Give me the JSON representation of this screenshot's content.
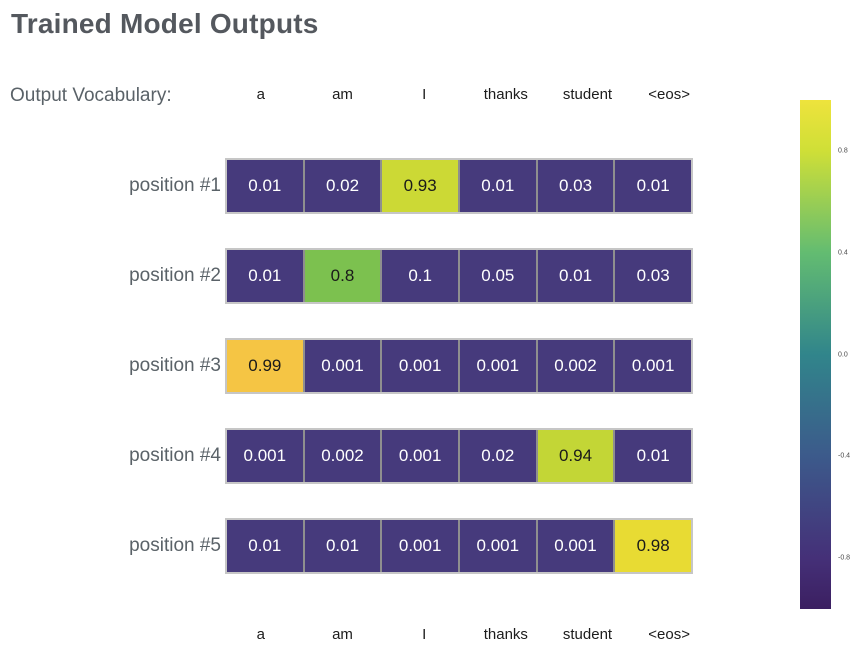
{
  "title": "Trained Model Outputs",
  "vocab_caption": "Output Vocabulary:",
  "chart_data": {
    "type": "heatmap",
    "title": "Trained Model Outputs",
    "columns": [
      "a",
      "am",
      "I",
      "thanks",
      "student",
      "<eos>"
    ],
    "rows": [
      {
        "label": "position #1",
        "values": [
          0.01,
          0.02,
          0.93,
          0.01,
          0.03,
          0.01
        ],
        "highlight": {
          "col": 2,
          "color": "#ccd935"
        }
      },
      {
        "label": "position #2",
        "values": [
          0.01,
          0.8,
          0.1,
          0.05,
          0.01,
          0.03
        ],
        "highlight": {
          "col": 1,
          "color": "#7cc14f"
        }
      },
      {
        "label": "position #3",
        "values": [
          0.99,
          0.001,
          0.001,
          0.001,
          0.002,
          0.001
        ],
        "highlight": {
          "col": 0,
          "color": "#f5c544"
        }
      },
      {
        "label": "position #4",
        "values": [
          0.001,
          0.002,
          0.001,
          0.02,
          0.94,
          0.01
        ],
        "highlight": {
          "col": 4,
          "color": "#c3d636"
        }
      },
      {
        "label": "position #5",
        "values": [
          0.01,
          0.01,
          0.001,
          0.001,
          0.001,
          0.98
        ],
        "highlight": {
          "col": 5,
          "color": "#e8db33"
        }
      }
    ],
    "cell_colors": {
      "base": "#463a7c",
      "text_on_base": "#ffffff",
      "text_on_highlight": "#1a1a1a"
    },
    "colorbar": {
      "range": [
        -1,
        1
      ],
      "ticks": [
        {
          "value": 0.8,
          "label": "0.8"
        },
        {
          "value": 0.4,
          "label": "0.4"
        },
        {
          "value": 0,
          "label": "0.0"
        },
        {
          "value": -0.4,
          "label": "-0.4"
        },
        {
          "value": -0.8,
          "label": "-0.8"
        }
      ],
      "gradient": [
        {
          "pos": 0,
          "color": "#eee33c"
        },
        {
          "pos": 10,
          "color": "#cfdf37"
        },
        {
          "pos": 30,
          "color": "#63bc71"
        },
        {
          "pos": 50,
          "color": "#31858b"
        },
        {
          "pos": 70,
          "color": "#3c5a8b"
        },
        {
          "pos": 90,
          "color": "#453078"
        },
        {
          "pos": 100,
          "color": "#3b1f61"
        }
      ]
    }
  }
}
